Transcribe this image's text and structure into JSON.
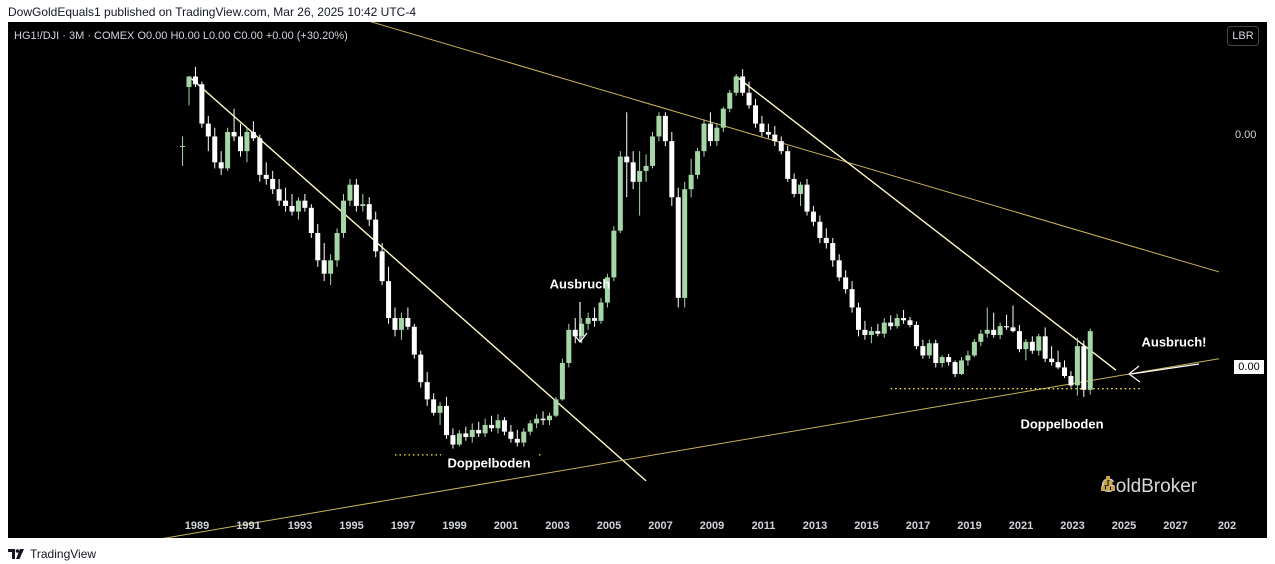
{
  "header": {
    "text": "DowGoldEquals1 published on TradingView.com, Mar 26, 2025 10:42 UTC-4"
  },
  "toolbar": {
    "symbol_line": "HG1!/DJI · 3M · COMEX  O0.00  H0.00  L0.00  C0.00  +0.00 (+30.20%)",
    "scale_button": "LBR"
  },
  "price_axis": {
    "top_label": "0.00",
    "last_price_tag": "0.00"
  },
  "watermark": {
    "text": "GoldBroker"
  },
  "footer": {
    "brand": "TradingView"
  },
  "colors": {
    "up": "#a5d6a7",
    "down": "#ffffff",
    "trendline": "#fff9c4",
    "channel": "#c9b458",
    "support_dots": "#ffeb3b"
  },
  "annotations": {
    "breakout_1": "Ausbruch",
    "breakout_2": "Ausbruch!",
    "double_bottom_1": "Doppelboden",
    "double_bottom_2": "Doppelboden"
  },
  "chart_data": {
    "type": "candlestick",
    "title": "",
    "scale": "log",
    "xlabel": "",
    "ylabel": "",
    "x_ticks": [
      "1989",
      "1991",
      "1993",
      "1995",
      "1997",
      "1999",
      "2001",
      "2003",
      "2005",
      "2007",
      "2009",
      "2011",
      "2013",
      "2015",
      "2017",
      "2019",
      "2021",
      "2023",
      "2025",
      "2027",
      "202"
    ],
    "price_labels_printed": [
      "0.00",
      "0.00"
    ],
    "note_values": "Price axis prints only 0.00; values below are relative ratio index levels estimated from the candle positions",
    "candles": [
      {
        "t": 1988.75,
        "o": 100,
        "h": 110,
        "l": 82,
        "c": 100
      },
      {
        "t": 1989.0,
        "o": 180,
        "h": 200,
        "l": 150,
        "c": 200
      },
      {
        "t": 1989.25,
        "o": 200,
        "h": 220,
        "l": 180,
        "c": 185
      },
      {
        "t": 1989.5,
        "o": 185,
        "h": 190,
        "l": 120,
        "c": 125
      },
      {
        "t": 1989.75,
        "o": 125,
        "h": 135,
        "l": 95,
        "c": 110
      },
      {
        "t": 1990.0,
        "o": 110,
        "h": 120,
        "l": 80,
        "c": 85
      },
      {
        "t": 1990.25,
        "o": 85,
        "h": 95,
        "l": 75,
        "c": 80
      },
      {
        "t": 1990.5,
        "o": 80,
        "h": 120,
        "l": 78,
        "c": 115
      },
      {
        "t": 1990.75,
        "o": 115,
        "h": 145,
        "l": 105,
        "c": 110
      },
      {
        "t": 1991.0,
        "o": 110,
        "h": 125,
        "l": 90,
        "c": 95
      },
      {
        "t": 1991.25,
        "o": 95,
        "h": 120,
        "l": 85,
        "c": 115
      },
      {
        "t": 1991.5,
        "o": 115,
        "h": 128,
        "l": 105,
        "c": 108
      },
      {
        "t": 1991.75,
        "o": 108,
        "h": 112,
        "l": 70,
        "c": 75
      },
      {
        "t": 1992.0,
        "o": 75,
        "h": 85,
        "l": 68,
        "c": 72
      },
      {
        "t": 1992.25,
        "o": 72,
        "h": 78,
        "l": 62,
        "c": 65
      },
      {
        "t": 1992.5,
        "o": 65,
        "h": 72,
        "l": 55,
        "c": 58
      },
      {
        "t": 1992.75,
        "o": 58,
        "h": 66,
        "l": 52,
        "c": 55
      },
      {
        "t": 1993.0,
        "o": 55,
        "h": 62,
        "l": 50,
        "c": 52
      },
      {
        "t": 1993.25,
        "o": 52,
        "h": 60,
        "l": 48,
        "c": 58
      },
      {
        "t": 1993.5,
        "o": 58,
        "h": 62,
        "l": 52,
        "c": 54
      },
      {
        "t": 1993.75,
        "o": 54,
        "h": 56,
        "l": 40,
        "c": 42
      },
      {
        "t": 1994.0,
        "o": 42,
        "h": 46,
        "l": 30,
        "c": 32
      },
      {
        "t": 1994.25,
        "o": 32,
        "h": 38,
        "l": 26,
        "c": 28
      },
      {
        "t": 1994.5,
        "o": 28,
        "h": 34,
        "l": 25,
        "c": 32
      },
      {
        "t": 1994.75,
        "o": 32,
        "h": 44,
        "l": 30,
        "c": 42
      },
      {
        "t": 1995.0,
        "o": 42,
        "h": 62,
        "l": 40,
        "c": 58
      },
      {
        "t": 1995.25,
        "o": 58,
        "h": 72,
        "l": 55,
        "c": 68
      },
      {
        "t": 1995.5,
        "o": 68,
        "h": 72,
        "l": 52,
        "c": 55
      },
      {
        "t": 1995.75,
        "o": 55,
        "h": 62,
        "l": 52,
        "c": 56
      },
      {
        "t": 1996.0,
        "o": 56,
        "h": 60,
        "l": 45,
        "c": 48
      },
      {
        "t": 1996.25,
        "o": 48,
        "h": 52,
        "l": 33,
        "c": 35
      },
      {
        "t": 1996.5,
        "o": 35,
        "h": 38,
        "l": 25,
        "c": 26
      },
      {
        "t": 1996.75,
        "o": 26,
        "h": 30,
        "l": 17,
        "c": 18
      },
      {
        "t": 1997.0,
        "o": 18,
        "h": 20,
        "l": 15,
        "c": 16
      },
      {
        "t": 1997.25,
        "o": 16,
        "h": 19,
        "l": 14.5,
        "c": 18
      },
      {
        "t": 1997.5,
        "o": 18,
        "h": 20,
        "l": 16,
        "c": 16.5
      },
      {
        "t": 1997.75,
        "o": 16.5,
        "h": 17,
        "l": 12,
        "c": 12.5
      },
      {
        "t": 1998.0,
        "o": 12.5,
        "h": 13,
        "l": 9,
        "c": 9.5
      },
      {
        "t": 1998.25,
        "o": 9.5,
        "h": 10.5,
        "l": 7.5,
        "c": 8
      },
      {
        "t": 1998.5,
        "o": 8,
        "h": 8.5,
        "l": 6.8,
        "c": 7
      },
      {
        "t": 1998.75,
        "o": 7,
        "h": 7.8,
        "l": 6.2,
        "c": 7.5
      },
      {
        "t": 1999.0,
        "o": 7.5,
        "h": 8.2,
        "l": 5.4,
        "c": 5.6
      },
      {
        "t": 1999.25,
        "o": 5.6,
        "h": 6,
        "l": 4.9,
        "c": 5.1
      },
      {
        "t": 1999.5,
        "o": 5.1,
        "h": 5.9,
        "l": 5,
        "c": 5.7
      },
      {
        "t": 1999.75,
        "o": 5.7,
        "h": 6.1,
        "l": 5.3,
        "c": 5.5
      },
      {
        "t": 2000.0,
        "o": 5.5,
        "h": 6.3,
        "l": 5.2,
        "c": 5.9
      },
      {
        "t": 2000.25,
        "o": 5.9,
        "h": 6.4,
        "l": 5.5,
        "c": 5.7
      },
      {
        "t": 2000.5,
        "o": 5.7,
        "h": 6.6,
        "l": 5.5,
        "c": 6.2
      },
      {
        "t": 2000.75,
        "o": 6.2,
        "h": 6.8,
        "l": 5.8,
        "c": 6.0
      },
      {
        "t": 2001.0,
        "o": 6.0,
        "h": 6.9,
        "l": 5.7,
        "c": 6.5
      },
      {
        "t": 2001.25,
        "o": 6.5,
        "h": 6.7,
        "l": 5.6,
        "c": 5.8
      },
      {
        "t": 2001.5,
        "o": 5.8,
        "h": 6.2,
        "l": 5.2,
        "c": 5.4
      },
      {
        "t": 2001.75,
        "o": 5.4,
        "h": 5.9,
        "l": 5.0,
        "c": 5.2
      },
      {
        "t": 2002.0,
        "o": 5.2,
        "h": 6.0,
        "l": 5.0,
        "c": 5.8
      },
      {
        "t": 2002.25,
        "o": 5.8,
        "h": 6.5,
        "l": 5.6,
        "c": 6.3
      },
      {
        "t": 2002.5,
        "o": 6.3,
        "h": 6.9,
        "l": 6.0,
        "c": 6.6
      },
      {
        "t": 2002.75,
        "o": 6.6,
        "h": 7.1,
        "l": 6.2,
        "c": 6.5
      },
      {
        "t": 2003.0,
        "o": 6.5,
        "h": 7.0,
        "l": 6.2,
        "c": 6.8
      },
      {
        "t": 2003.25,
        "o": 6.8,
        "h": 8.2,
        "l": 6.7,
        "c": 8.0
      },
      {
        "t": 2003.5,
        "o": 8.0,
        "h": 12,
        "l": 7.9,
        "c": 11.5
      },
      {
        "t": 2003.75,
        "o": 11.5,
        "h": 17,
        "l": 11,
        "c": 16
      },
      {
        "t": 2004.0,
        "o": 16,
        "h": 18,
        "l": 14,
        "c": 15
      },
      {
        "t": 2004.25,
        "o": 15,
        "h": 18,
        "l": 14,
        "c": 17
      },
      {
        "t": 2004.5,
        "o": 17,
        "h": 19,
        "l": 16,
        "c": 18
      },
      {
        "t": 2004.75,
        "o": 18,
        "h": 20,
        "l": 16.5,
        "c": 17.5
      },
      {
        "t": 2005.0,
        "o": 17.5,
        "h": 22,
        "l": 17,
        "c": 21
      },
      {
        "t": 2005.25,
        "o": 21,
        "h": 28,
        "l": 20,
        "c": 27
      },
      {
        "t": 2005.5,
        "o": 27,
        "h": 45,
        "l": 26,
        "c": 43
      },
      {
        "t": 2005.75,
        "o": 43,
        "h": 95,
        "l": 42,
        "c": 90
      },
      {
        "t": 2006.0,
        "o": 90,
        "h": 140,
        "l": 60,
        "c": 85
      },
      {
        "t": 2006.25,
        "o": 85,
        "h": 95,
        "l": 65,
        "c": 70
      },
      {
        "t": 2006.5,
        "o": 70,
        "h": 95,
        "l": 50,
        "c": 78
      },
      {
        "t": 2006.75,
        "o": 78,
        "h": 92,
        "l": 70,
        "c": 82
      },
      {
        "t": 2007.0,
        "o": 82,
        "h": 115,
        "l": 80,
        "c": 110
      },
      {
        "t": 2007.25,
        "o": 110,
        "h": 140,
        "l": 105,
        "c": 135
      },
      {
        "t": 2007.5,
        "o": 135,
        "h": 140,
        "l": 100,
        "c": 105
      },
      {
        "t": 2007.75,
        "o": 105,
        "h": 115,
        "l": 55,
        "c": 60
      },
      {
        "t": 2008.0,
        "o": 60,
        "h": 66,
        "l": 20,
        "c": 22
      },
      {
        "t": 2008.25,
        "o": 22,
        "h": 70,
        "l": 20,
        "c": 65
      },
      {
        "t": 2008.5,
        "o": 65,
        "h": 88,
        "l": 60,
        "c": 75
      },
      {
        "t": 2008.75,
        "o": 75,
        "h": 98,
        "l": 72,
        "c": 95
      },
      {
        "t": 2009.0,
        "o": 95,
        "h": 130,
        "l": 90,
        "c": 125
      },
      {
        "t": 2009.25,
        "o": 125,
        "h": 140,
        "l": 100,
        "c": 105
      },
      {
        "t": 2009.5,
        "o": 105,
        "h": 125,
        "l": 100,
        "c": 120
      },
      {
        "t": 2009.75,
        "o": 120,
        "h": 148,
        "l": 115,
        "c": 145
      },
      {
        "t": 2010.0,
        "o": 145,
        "h": 175,
        "l": 140,
        "c": 170
      },
      {
        "t": 2010.25,
        "o": 170,
        "h": 205,
        "l": 165,
        "c": 200
      },
      {
        "t": 2010.5,
        "o": 200,
        "h": 215,
        "l": 165,
        "c": 170
      },
      {
        "t": 2010.75,
        "o": 170,
        "h": 190,
        "l": 145,
        "c": 150
      },
      {
        "t": 2011.0,
        "o": 150,
        "h": 160,
        "l": 120,
        "c": 125
      },
      {
        "t": 2011.25,
        "o": 125,
        "h": 135,
        "l": 110,
        "c": 115
      },
      {
        "t": 2011.5,
        "o": 115,
        "h": 125,
        "l": 108,
        "c": 112
      },
      {
        "t": 2011.75,
        "o": 112,
        "h": 122,
        "l": 100,
        "c": 105
      },
      {
        "t": 2012.0,
        "o": 105,
        "h": 110,
        "l": 92,
        "c": 95
      },
      {
        "t": 2012.25,
        "o": 95,
        "h": 100,
        "l": 70,
        "c": 72
      },
      {
        "t": 2012.5,
        "o": 72,
        "h": 76,
        "l": 60,
        "c": 62
      },
      {
        "t": 2012.75,
        "o": 62,
        "h": 70,
        "l": 55,
        "c": 68
      },
      {
        "t": 2013.0,
        "o": 68,
        "h": 72,
        "l": 50,
        "c": 52
      },
      {
        "t": 2013.25,
        "o": 52,
        "h": 55,
        "l": 45,
        "c": 47
      },
      {
        "t": 2013.5,
        "o": 47,
        "h": 50,
        "l": 38,
        "c": 40
      },
      {
        "t": 2013.75,
        "o": 40,
        "h": 44,
        "l": 36,
        "c": 38
      },
      {
        "t": 2014.0,
        "o": 38,
        "h": 40,
        "l": 30,
        "c": 32
      },
      {
        "t": 2014.25,
        "o": 32,
        "h": 34,
        "l": 26,
        "c": 27
      },
      {
        "t": 2014.5,
        "o": 27,
        "h": 29,
        "l": 23,
        "c": 24
      },
      {
        "t": 2014.75,
        "o": 24,
        "h": 26,
        "l": 19,
        "c": 20
      },
      {
        "t": 2015.0,
        "o": 20,
        "h": 21,
        "l": 15,
        "c": 16
      },
      {
        "t": 2015.25,
        "o": 16,
        "h": 17.5,
        "l": 14.5,
        "c": 15.2
      },
      {
        "t": 2015.5,
        "o": 15.2,
        "h": 16.5,
        "l": 14,
        "c": 15.8
      },
      {
        "t": 2015.75,
        "o": 15.8,
        "h": 17,
        "l": 15,
        "c": 15.4
      },
      {
        "t": 2016.0,
        "o": 15.4,
        "h": 18,
        "l": 14.8,
        "c": 17.2
      },
      {
        "t": 2016.25,
        "o": 17.2,
        "h": 18.5,
        "l": 16,
        "c": 16.6
      },
      {
        "t": 2016.5,
        "o": 16.6,
        "h": 18.8,
        "l": 16.2,
        "c": 18
      },
      {
        "t": 2016.75,
        "o": 18,
        "h": 19.5,
        "l": 17,
        "c": 17.6
      },
      {
        "t": 2017.0,
        "o": 17.6,
        "h": 18.2,
        "l": 16.4,
        "c": 16.8
      },
      {
        "t": 2017.25,
        "o": 16.8,
        "h": 17.4,
        "l": 13.2,
        "c": 13.6
      },
      {
        "t": 2017.5,
        "o": 13.6,
        "h": 14.5,
        "l": 12,
        "c": 12.4
      },
      {
        "t": 2017.75,
        "o": 12.4,
        "h": 14.5,
        "l": 12,
        "c": 14
      },
      {
        "t": 2018.0,
        "o": 14,
        "h": 14.5,
        "l": 11,
        "c": 11.5
      },
      {
        "t": 2018.25,
        "o": 11.5,
        "h": 12.4,
        "l": 11,
        "c": 12.2
      },
      {
        "t": 2018.5,
        "o": 12.2,
        "h": 12.6,
        "l": 11.2,
        "c": 11.6
      },
      {
        "t": 2018.75,
        "o": 11.6,
        "h": 11.8,
        "l": 10,
        "c": 10.3
      },
      {
        "t": 2019.0,
        "o": 10.3,
        "h": 12.2,
        "l": 10.2,
        "c": 11.8
      },
      {
        "t": 2019.25,
        "o": 11.8,
        "h": 13,
        "l": 11.2,
        "c": 12.4
      },
      {
        "t": 2019.5,
        "o": 12.4,
        "h": 14.6,
        "l": 12.2,
        "c": 14.2
      },
      {
        "t": 2019.75,
        "o": 14.2,
        "h": 16,
        "l": 13.6,
        "c": 15.4
      },
      {
        "t": 2020.0,
        "o": 15.4,
        "h": 20,
        "l": 14.8,
        "c": 16
      },
      {
        "t": 2020.25,
        "o": 16,
        "h": 19,
        "l": 14.8,
        "c": 15.2
      },
      {
        "t": 2020.5,
        "o": 15.2,
        "h": 17.2,
        "l": 14.6,
        "c": 16.6
      },
      {
        "t": 2020.75,
        "o": 16.6,
        "h": 18.6,
        "l": 16,
        "c": 16.4
      },
      {
        "t": 2021.0,
        "o": 16.4,
        "h": 20.4,
        "l": 15.6,
        "c": 15.8
      },
      {
        "t": 2021.25,
        "o": 15.8,
        "h": 16.8,
        "l": 12.8,
        "c": 13.2
      },
      {
        "t": 2021.5,
        "o": 13.2,
        "h": 14.6,
        "l": 11.8,
        "c": 14.2
      },
      {
        "t": 2021.75,
        "o": 14.2,
        "h": 15,
        "l": 12.6,
        "c": 13
      },
      {
        "t": 2022.0,
        "o": 13,
        "h": 15.4,
        "l": 12.4,
        "c": 15
      },
      {
        "t": 2022.25,
        "o": 15,
        "h": 16.4,
        "l": 11.6,
        "c": 12
      },
      {
        "t": 2022.5,
        "o": 12,
        "h": 13.6,
        "l": 11.2,
        "c": 11.6
      },
      {
        "t": 2022.75,
        "o": 11.6,
        "h": 13,
        "l": 10.8,
        "c": 11
      },
      {
        "t": 2023.0,
        "o": 11,
        "h": 11.8,
        "l": 9.9,
        "c": 10.1
      },
      {
        "t": 2023.25,
        "o": 10.1,
        "h": 10.6,
        "l": 9,
        "c": 9.2
      },
      {
        "t": 2023.5,
        "o": 9.2,
        "h": 14.8,
        "l": 8.3,
        "c": 13.6
      },
      {
        "t": 2023.75,
        "o": 13.6,
        "h": 14.4,
        "l": 8.2,
        "c": 8.8
      },
      {
        "t": 2024.0,
        "o": 8.8,
        "h": 16.2,
        "l": 8.4,
        "c": 15.8
      }
    ],
    "lines": [
      {
        "name": "long-term-resistance",
        "from": [
          1984.0,
          860
        ],
        "to": [
          2029.0,
          28.5
        ]
      },
      {
        "name": "trendline-1989",
        "from": [
          1989.0,
          200
        ],
        "to": [
          2006.75,
          3.55
        ]
      },
      {
        "name": "trendline-2011",
        "from": [
          2010.25,
          200
        ],
        "to": [
          2025.0,
          10.7
        ]
      },
      {
        "name": "long-term-support",
        "from": [
          1984.0,
          1.68
        ],
        "to": [
          2029.0,
          12.0
        ]
      }
    ],
    "support_levels": [
      {
        "name": "double-bottom-support-1",
        "value": 4.6,
        "from": 1997.0,
        "to": 2002.75
      },
      {
        "name": "double-bottom-support-2",
        "value": 8.9,
        "from": 2016.25,
        "to": 2026.0
      }
    ]
  }
}
